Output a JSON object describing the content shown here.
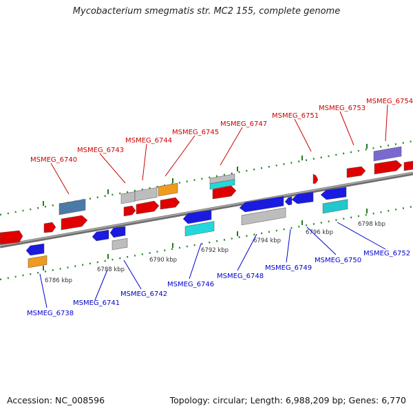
{
  "title": "Mycobacterium smegmatis str. MC2 155, complete genome",
  "footer": {
    "accession": "Accession: NC_008596",
    "summary": "Topology: circular; Length: 6,988,209 bp; Genes: 6,770"
  },
  "colors": {
    "backbone": "#8a8a8a",
    "forward_label": "#cc0000",
    "reverse_label": "#0000cc",
    "dotted_track": "#2a8a2a"
  },
  "ticks": [
    {
      "label": "6786 kbp"
    },
    {
      "label": "6788 kbp"
    },
    {
      "label": "6790 kbp"
    },
    {
      "label": "6792 kbp"
    },
    {
      "label": "6794 kbp"
    },
    {
      "label": "6796 kbp"
    },
    {
      "label": "6798 kbp"
    }
  ],
  "genes_forward": [
    {
      "label": "MSMEG_6740"
    },
    {
      "label": "MSMEG_6743"
    },
    {
      "label": "MSMEG_6744"
    },
    {
      "label": "MSMEG_6745"
    },
    {
      "label": "MSMEG_6747"
    },
    {
      "label": "MSMEG_6751"
    },
    {
      "label": "MSMEG_6753"
    },
    {
      "label": "MSMEG_6754"
    }
  ],
  "genes_reverse": [
    {
      "label": "MSMEG_6738"
    },
    {
      "label": "MSMEG_6741"
    },
    {
      "label": "MSMEG_6742"
    },
    {
      "label": "MSMEG_6746"
    },
    {
      "label": "MSMEG_6748"
    },
    {
      "label": "MSMEG_6749"
    },
    {
      "label": "MSMEG_6750"
    },
    {
      "label": "MSMEG_6752"
    }
  ]
}
